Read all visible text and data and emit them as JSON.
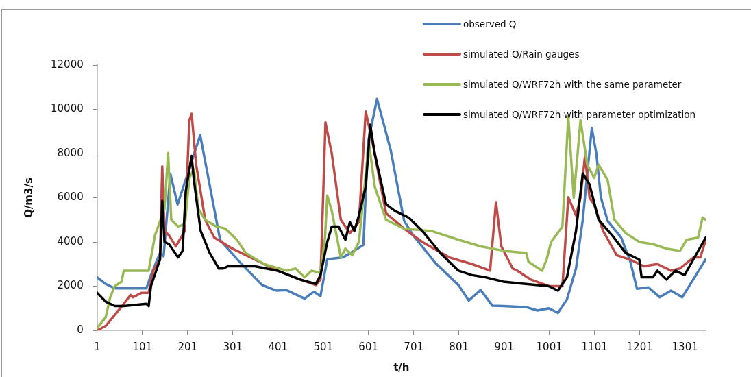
{
  "chart_data": {
    "type": "line",
    "xlabel": "t/h",
    "ylabel": "Q/m3/s",
    "xlim": [
      1,
      1347
    ],
    "xticks": [
      1,
      101,
      201,
      301,
      401,
      501,
      601,
      701,
      801,
      901,
      1001,
      1101,
      1201,
      1301
    ],
    "ylim": [
      0,
      12000
    ],
    "yticks": [
      0,
      2000,
      4000,
      6000,
      8000,
      10000,
      12000
    ],
    "grid": false,
    "legend": "top right",
    "marker": "none",
    "line_style": "solid",
    "series": [
      {
        "name": "observed Q",
        "color": "#4a7ebb",
        "x": [
          1,
          20,
          40,
          60,
          110,
          120,
          140,
          148,
          163,
          179,
          229,
          273,
          315,
          366,
          397,
          420,
          460,
          480,
          495,
          510,
          545,
          590,
          600,
          620,
          650,
          680,
          700,
          750,
          800,
          823,
          849,
          875,
          900,
          950,
          975,
          1000,
          1020,
          1040,
          1060,
          1075,
          1085,
          1095,
          1105,
          1115,
          1130,
          1160,
          1180,
          1195,
          1220,
          1245,
          1270,
          1295,
          1347
        ],
        "values": [
          2400,
          2100,
          1900,
          1900,
          1900,
          2500,
          3500,
          3350,
          7080,
          5700,
          8830,
          4090,
          3120,
          2050,
          1800,
          1820,
          1440,
          1750,
          1550,
          3220,
          3300,
          3870,
          8500,
          10470,
          8180,
          4950,
          4300,
          3030,
          2050,
          1350,
          1830,
          1120,
          1100,
          1050,
          900,
          1000,
          790,
          1400,
          2800,
          5000,
          7100,
          9150,
          8000,
          6020,
          4950,
          4200,
          3120,
          1880,
          1950,
          1500,
          1800,
          1500,
          3220
        ]
      },
      {
        "name": "simulated Q/Rain gauges",
        "color": "#be4b48",
        "x": [
          1,
          20,
          40,
          60,
          75,
          80,
          100,
          115,
          125,
          140,
          145,
          150,
          160,
          175,
          195,
          205,
          210,
          220,
          240,
          260,
          300,
          350,
          400,
          450,
          485,
          495,
          506,
          520,
          540,
          560,
          580,
          595,
          610,
          640,
          680,
          720,
          780,
          830,
          870,
          883,
          895,
          920,
          930,
          960,
          1000,
          1030,
          1043,
          1060,
          1070,
          1080,
          1090,
          1100,
          1120,
          1150,
          1180,
          1210,
          1240,
          1270,
          1290,
          1320,
          1335,
          1347
        ],
        "values": [
          0,
          200,
          700,
          1200,
          1600,
          1500,
          1700,
          1700,
          2700,
          3200,
          7420,
          4500,
          4300,
          3800,
          4500,
          9500,
          9800,
          7500,
          5000,
          4200,
          3700,
          3200,
          2700,
          2300,
          2050,
          2300,
          9400,
          8000,
          5000,
          4400,
          4900,
          9900,
          8500,
          5300,
          4600,
          4000,
          3300,
          3000,
          2700,
          5800,
          3800,
          2800,
          2700,
          2300,
          2000,
          2000,
          6020,
          5200,
          6000,
          7890,
          6000,
          5700,
          4500,
          3400,
          3200,
          2900,
          3000,
          2700,
          2800,
          3300,
          3300,
          4100
        ]
      },
      {
        "name": "simulated Q/WRF72h with the same parameter",
        "color": "#98b954",
        "x": [
          1,
          20,
          30,
          40,
          55,
          60,
          115,
          129,
          150,
          158,
          165,
          180,
          195,
          205,
          215,
          225,
          240,
          265,
          285,
          310,
          330,
          370,
          420,
          440,
          460,
          475,
          495,
          505,
          510,
          520,
          540,
          550,
          565,
          580,
          602,
          615,
          640,
          680,
          740,
          800,
          850,
          900,
          950,
          955,
          985,
          995,
          1005,
          1030,
          1043,
          1055,
          1070,
          1085,
          1100,
          1110,
          1130,
          1145,
          1170,
          1200,
          1230,
          1260,
          1290,
          1305,
          1330,
          1340,
          1347
        ],
        "values": [
          100,
          600,
          1500,
          2000,
          2200,
          2700,
          2700,
          4300,
          5500,
          8020,
          5000,
          4700,
          4800,
          6900,
          7300,
          5500,
          5000,
          4700,
          4600,
          4100,
          3500,
          3000,
          2700,
          2800,
          2400,
          2700,
          2600,
          4200,
          6100,
          5400,
          3300,
          3700,
          3400,
          4000,
          8500,
          6500,
          5000,
          4600,
          4500,
          4100,
          3800,
          3600,
          3500,
          3100,
          2700,
          3200,
          4000,
          4700,
          9680,
          6000,
          9510,
          7500,
          6900,
          7500,
          6800,
          5000,
          4400,
          4000,
          3900,
          3700,
          3600,
          4100,
          4200,
          5100,
          5000
        ]
      },
      {
        "name": "simulated Q/WRF72h with parameter optimization",
        "color": "#000000",
        "x": [
          1,
          20,
          40,
          60,
          110,
          115,
          120,
          140,
          145,
          150,
          160,
          180,
          190,
          197,
          210,
          215,
          230,
          250,
          270,
          280,
          290,
          350,
          400,
          450,
          485,
          495,
          510,
          520,
          535,
          550,
          560,
          570,
          580,
          595,
          605,
          615,
          640,
          660,
          690,
          720,
          760,
          800,
          830,
          860,
          900,
          1000,
          1020,
          1040,
          1060,
          1075,
          1090,
          1110,
          1140,
          1170,
          1200,
          1205,
          1230,
          1240,
          1260,
          1280,
          1300,
          1347
        ],
        "values": [
          1700,
          1300,
          1100,
          1100,
          1200,
          1100,
          2000,
          3200,
          5860,
          4000,
          3900,
          3300,
          3600,
          6300,
          7890,
          6800,
          4500,
          3500,
          2800,
          2800,
          2900,
          2900,
          2700,
          2300,
          2100,
          2500,
          4000,
          4700,
          4700,
          4100,
          4900,
          4500,
          5200,
          6500,
          9300,
          8000,
          5700,
          5400,
          5100,
          4500,
          3500,
          2700,
          2500,
          2400,
          2200,
          2000,
          1800,
          2400,
          4500,
          7100,
          6600,
          5000,
          4300,
          3500,
          3200,
          2400,
          2400,
          2700,
          2300,
          2700,
          2500,
          4200
        ]
      }
    ]
  }
}
